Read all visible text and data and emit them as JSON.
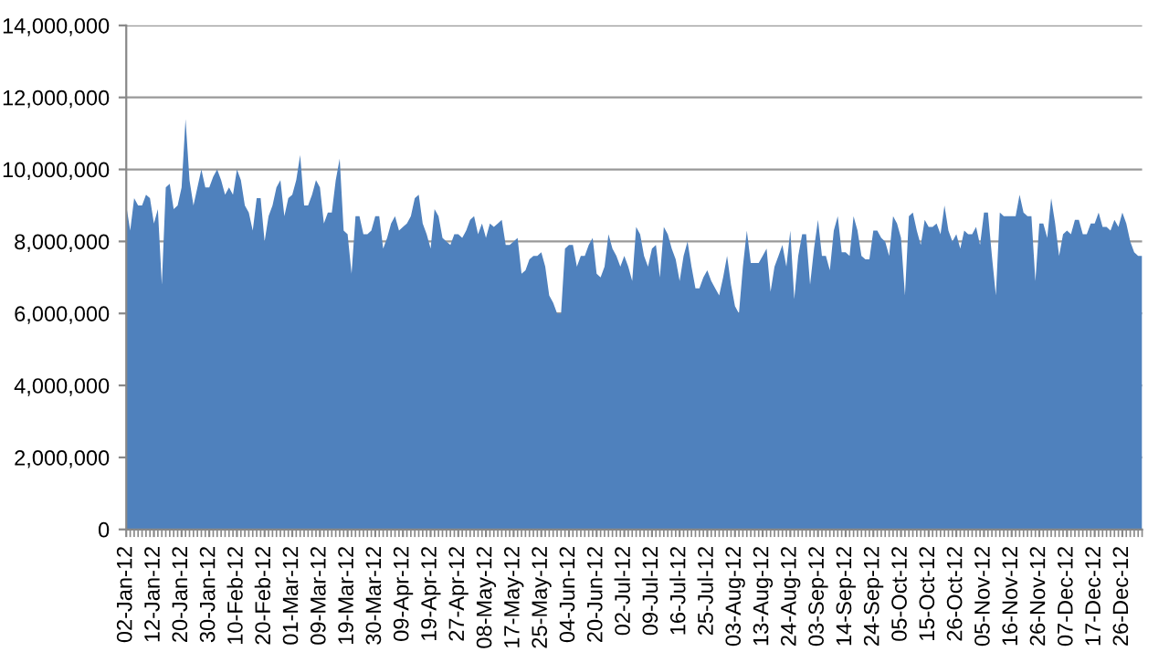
{
  "chart_data": {
    "type": "area",
    "color": "#4f81bd",
    "categories": [
      "02-Jan-12",
      null,
      null,
      null,
      null,
      null,
      null,
      "12-Jan-12",
      null,
      null,
      null,
      null,
      null,
      null,
      "20-Jan-12",
      null,
      null,
      null,
      null,
      null,
      null,
      "30-Jan-12",
      null,
      null,
      null,
      null,
      null,
      null,
      "10-Feb-12",
      null,
      null,
      null,
      null,
      null,
      null,
      "20-Feb-12",
      null,
      null,
      null,
      null,
      null,
      null,
      "01-Mar-12",
      null,
      null,
      null,
      null,
      null,
      null,
      "09-Mar-12",
      null,
      null,
      null,
      null,
      null,
      null,
      "19-Mar-12",
      null,
      null,
      null,
      null,
      null,
      null,
      "30-Mar-12",
      null,
      null,
      null,
      null,
      null,
      null,
      "09-Apr-12",
      null,
      null,
      null,
      null,
      null,
      null,
      "19-Apr-12",
      null,
      null,
      null,
      null,
      null,
      null,
      "27-Apr-12",
      null,
      null,
      null,
      null,
      null,
      null,
      "08-May-12",
      null,
      null,
      null,
      null,
      null,
      null,
      "17-May-12",
      null,
      null,
      null,
      null,
      null,
      null,
      "25-May-12",
      null,
      null,
      null,
      null,
      null,
      null,
      "04-Jun-12",
      null,
      null,
      null,
      null,
      null,
      null,
      "20-Jun-12",
      null,
      null,
      null,
      null,
      null,
      null,
      "02-Jul-12",
      null,
      null,
      null,
      null,
      null,
      null,
      "09-Jul-12",
      null,
      null,
      null,
      null,
      null,
      null,
      "16-Jul-12",
      null,
      null,
      null,
      null,
      null,
      null,
      "25-Jul-12",
      null,
      null,
      null,
      null,
      null,
      null,
      "03-Aug-12",
      null,
      null,
      null,
      null,
      null,
      null,
      "13-Aug-12",
      null,
      null,
      null,
      null,
      null,
      null,
      "24-Aug-12",
      null,
      null,
      null,
      null,
      null,
      null,
      "03-Sep-12",
      null,
      null,
      null,
      null,
      null,
      null,
      "14-Sep-12",
      null,
      null,
      null,
      null,
      null,
      null,
      "24-Sep-12",
      null,
      null,
      null,
      null,
      null,
      null,
      "05-Oct-12",
      null,
      null,
      null,
      null,
      null,
      null,
      "15-Oct-12",
      null,
      null,
      null,
      null,
      null,
      null,
      "26-Oct-12",
      null,
      null,
      null,
      null,
      null,
      null,
      "05-Nov-12",
      null,
      null,
      null,
      null,
      null,
      null,
      "16-Nov-12",
      null,
      null,
      null,
      null,
      null,
      null,
      "26-Nov-12",
      null,
      null,
      null,
      null,
      null,
      null,
      "07-Dec-12",
      null,
      null,
      null,
      null,
      null,
      null,
      "17-Dec-12",
      null,
      null,
      null,
      null,
      null,
      null,
      "26-Dec-12",
      null,
      null,
      null,
      null,
      null
    ],
    "values": [
      9000000.0,
      8300000.0,
      9200000.0,
      9000000.0,
      9000000.0,
      9300000.0,
      9200000.0,
      8500000.0,
      8900000.0,
      6800000.0,
      9500000.0,
      9600000.0,
      8900000.0,
      9000000.0,
      9500000.0,
      11400000.0,
      9700000.0,
      9000000.0,
      9500000.0,
      10000000.0,
      9500000.0,
      9500000.0,
      9800000.0,
      10000000.0,
      9700000.0,
      9300000.0,
      9500000.0,
      9300000.0,
      10000000.0,
      9700000.0,
      9000000.0,
      8800000.0,
      8300000.0,
      9200000.0,
      9200000.0,
      8000000.0,
      8700000.0,
      9000000.0,
      9500000.0,
      9700000.0,
      8700000.0,
      9200000.0,
      9300000.0,
      9700000.0,
      10400000.0,
      9000000.0,
      9000000.0,
      9300000.0,
      9700000.0,
      9500000.0,
      8500000.0,
      8800000.0,
      8800000.0,
      9700000.0,
      10300000.0,
      8300000.0,
      8200000.0,
      7100000.0,
      8700000.0,
      8700000.0,
      8200000.0,
      8200000.0,
      8300000.0,
      8700000.0,
      8700000.0,
      7800000.0,
      8100000.0,
      8500000.0,
      8700000.0,
      8300000.0,
      8400000.0,
      8500000.0,
      8700000.0,
      9200000.0,
      9300000.0,
      8500000.0,
      8200000.0,
      7800000.0,
      8900000.0,
      8700000.0,
      8100000.0,
      8000000.0,
      7900000.0,
      8200000.0,
      8200000.0,
      8100000.0,
      8300000.0,
      8600000.0,
      8700000.0,
      8200000.0,
      8500000.0,
      8100000.0,
      8500000.0,
      8400000.0,
      8500000.0,
      8600000.0,
      7900000.0,
      7900000.0,
      8000000.0,
      8100000.0,
      7100000.0,
      7200000.0,
      7500000.0,
      7600000.0,
      7600000.0,
      7700000.0,
      7300000.0,
      6500000.0,
      6300000.0,
      6000000.0,
      6000000.0,
      7800000.0,
      7900000.0,
      7900000.0,
      7300000.0,
      7600000.0,
      7600000.0,
      7900000.0,
      8100000.0,
      7100000.0,
      7000000.0,
      7300000.0,
      8200000.0,
      7800000.0,
      7600000.0,
      7300000.0,
      7600000.0,
      7300000.0,
      6900000.0,
      8400000.0,
      8200000.0,
      7600000.0,
      7300000.0,
      7800000.0,
      7900000.0,
      7000000.0,
      8400000.0,
      8200000.0,
      7800000.0,
      7500000.0,
      6900000.0,
      7600000.0,
      8000000.0,
      7300000.0,
      6700000.0,
      6700000.0,
      7000000.0,
      7200000.0,
      6900000.0,
      6700000.0,
      6500000.0,
      7000000.0,
      7600000.0,
      6800000.0,
      6200000.0,
      6000000.0,
      7300000.0,
      8300000.0,
      7400000.0,
      7400000.0,
      7400000.0,
      7600000.0,
      7800000.0,
      6600000.0,
      7300000.0,
      7600000.0,
      7900000.0,
      7300000.0,
      8300000.0,
      6400000.0,
      7600000.0,
      8200000.0,
      8200000.0,
      6800000.0,
      7800000.0,
      8600000.0,
      7600000.0,
      7600000.0,
      7200000.0,
      8300000.0,
      8700000.0,
      7700000.0,
      7700000.0,
      7600000.0,
      8700000.0,
      8300000.0,
      7600000.0,
      7500000.0,
      7500000.0,
      8300000.0,
      8300000.0,
      8100000.0,
      8000000.0,
      7600000.0,
      8700000.0,
      8500000.0,
      8100000.0,
      6500000.0,
      8700000.0,
      8800000.0,
      8300000.0,
      7900000.0,
      8600000.0,
      8400000.0,
      8400000.0,
      8500000.0,
      8200000.0,
      9000000.0,
      8300000.0,
      8000000.0,
      8200000.0,
      7800000.0,
      8300000.0,
      8200000.0,
      8200000.0,
      8400000.0,
      7900000.0,
      8800000.0,
      8800000.0,
      7600000.0,
      6500000.0,
      8800000.0,
      8700000.0,
      8700000.0,
      8700000.0,
      8700000.0,
      9300000.0,
      8800000.0,
      8700000.0,
      8700000.0,
      6900000.0,
      8500000.0,
      8500000.0,
      8100000.0,
      9200000.0,
      8500000.0,
      7600000.0,
      8200000.0,
      8300000.0,
      8200000.0,
      8600000.0,
      8600000.0,
      8200000.0,
      8200000.0,
      8500000.0,
      8500000.0,
      8800000.0,
      8400000.0,
      8400000.0,
      8300000.0,
      8600000.0,
      8400000.0,
      8800000.0,
      8500000.0,
      8000000.0,
      7700000.0,
      7600000.0,
      7600000.0
    ],
    "ylim": [
      0,
      14000000
    ],
    "yticks": [
      {
        "value": 0,
        "label": "0"
      },
      {
        "value": 2000000,
        "label": "2,000,000"
      },
      {
        "value": 4000000,
        "label": "4,000,000"
      },
      {
        "value": 6000000,
        "label": "6,000,000"
      },
      {
        "value": 8000000,
        "label": "8,000,000"
      },
      {
        "value": 10000000,
        "label": "10,000,000"
      },
      {
        "value": 12000000,
        "label": "12,000,000"
      },
      {
        "value": 14000000,
        "label": "14,000,000"
      }
    ],
    "grid": "y"
  }
}
